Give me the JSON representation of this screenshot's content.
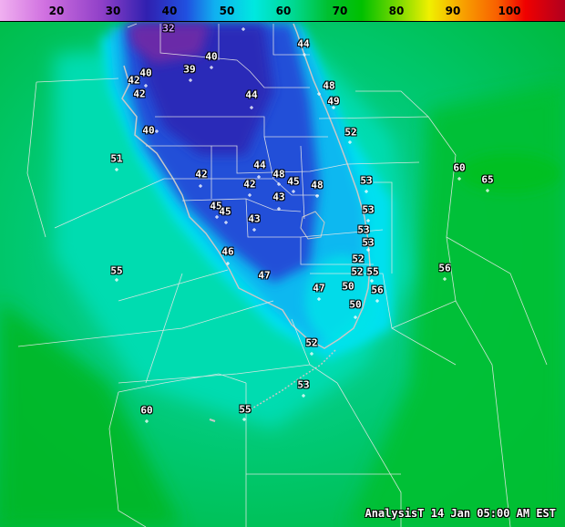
{
  "colorbar": {
    "ticks": [
      "20",
      "30",
      "40",
      "50",
      "60",
      "70",
      "80",
      "90",
      "100"
    ]
  },
  "stations": [
    {
      "value": "32"
    },
    {
      "value": "44"
    },
    {
      "value": "40"
    },
    {
      "value": "39"
    },
    {
      "value": "40"
    },
    {
      "value": "42"
    },
    {
      "value": "42"
    },
    {
      "value": "44"
    },
    {
      "value": "48"
    },
    {
      "value": "49"
    },
    {
      "value": "40"
    },
    {
      "value": "52"
    },
    {
      "value": "51"
    },
    {
      "value": "44"
    },
    {
      "value": "48"
    },
    {
      "value": "42"
    },
    {
      "value": "42"
    },
    {
      "value": "45"
    },
    {
      "value": "48"
    },
    {
      "value": "53"
    },
    {
      "value": "60"
    },
    {
      "value": "65"
    },
    {
      "value": "43"
    },
    {
      "value": "45"
    },
    {
      "value": "45"
    },
    {
      "value": "43"
    },
    {
      "value": "53"
    },
    {
      "value": "53"
    },
    {
      "value": "53"
    },
    {
      "value": "46"
    },
    {
      "value": "52"
    },
    {
      "value": "52"
    },
    {
      "value": "55"
    },
    {
      "value": "56"
    },
    {
      "value": "55"
    },
    {
      "value": "47"
    },
    {
      "value": "47"
    },
    {
      "value": "50"
    },
    {
      "value": "56"
    },
    {
      "value": "50"
    },
    {
      "value": "52"
    },
    {
      "value": "53"
    },
    {
      "value": "60"
    },
    {
      "value": "55"
    }
  ],
  "caption": "AnalysisT  14 Jan 05:00 AM EST"
}
